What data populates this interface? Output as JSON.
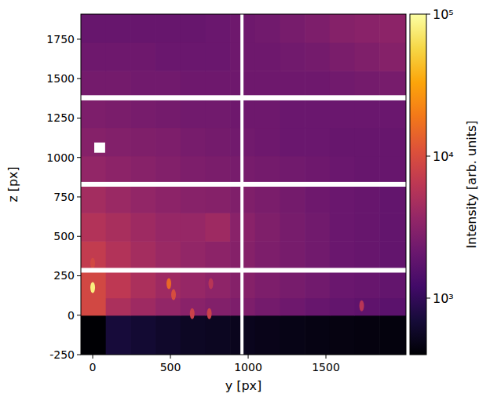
{
  "chart_data": {
    "type": "heatmap",
    "x_label": "y [px]",
    "y_label": "z [px]",
    "xlim": [
      -76,
      2015
    ],
    "ylim": [
      -250,
      1909
    ],
    "xticks": [
      0,
      500,
      1000,
      1500
    ],
    "yticks": [
      -250,
      0,
      250,
      500,
      750,
      1000,
      1250,
      1500,
      1750
    ],
    "x_edges": [
      -76,
      84,
      244,
      404,
      564,
      724,
      884,
      1044,
      1204,
      1364,
      1524,
      1684,
      1844,
      2015
    ],
    "y_edges": [
      -250,
      0,
      110,
      290,
      470,
      650,
      830,
      1010,
      1190,
      1370,
      1550,
      1730,
      1909
    ],
    "values": [
      [
        400,
        700,
        650,
        600,
        560,
        540,
        520,
        500,
        480,
        470,
        460,
        450,
        440
      ],
      [
        9000,
        5000,
        4200,
        3600,
        3200,
        2900,
        2700,
        2400,
        2200,
        2000,
        1900,
        1800,
        1700
      ],
      [
        9000,
        6500,
        5000,
        4200,
        3800,
        3400,
        3000,
        2700,
        2500,
        2300,
        2100,
        2000,
        1900
      ],
      [
        7000,
        5500,
        4600,
        4000,
        3600,
        3300,
        3000,
        2700,
        2500,
        2300,
        2100,
        2000,
        1900
      ],
      [
        5500,
        4800,
        4200,
        3800,
        3800,
        4200,
        3200,
        2800,
        2500,
        2300,
        2100,
        2000,
        1900
      ],
      [
        4500,
        4000,
        3600,
        3300,
        3100,
        3000,
        2800,
        2600,
        2400,
        2200,
        2100,
        2000,
        1900
      ],
      [
        3600,
        3300,
        3100,
        2900,
        2700,
        2600,
        2500,
        2400,
        2300,
        2200,
        2100,
        2000,
        2000
      ],
      [
        3000,
        2900,
        2800,
        2700,
        2500,
        2400,
        2300,
        2200,
        2100,
        2100,
        2000,
        2000,
        2000
      ],
      [
        2700,
        2600,
        2500,
        2400,
        2300,
        2300,
        2200,
        2200,
        2100,
        2100,
        2100,
        2100,
        2100
      ],
      [
        2400,
        2400,
        2300,
        2300,
        2200,
        2200,
        2200,
        2200,
        2200,
        2200,
        2300,
        2400,
        2500
      ],
      [
        2200,
        2200,
        2200,
        2100,
        2100,
        2100,
        2200,
        2200,
        2300,
        2400,
        2600,
        2800,
        3000
      ],
      [
        2000,
        2000,
        2000,
        2000,
        2000,
        2100,
        2200,
        2300,
        2500,
        2700,
        3000,
        3200,
        3300
      ]
    ],
    "peaks": [
      {
        "x": 0,
        "y": 175,
        "value": 80000
      },
      {
        "x": 0,
        "y": 330,
        "value": 9000
      },
      {
        "x": 490,
        "y": 200,
        "value": 15000
      },
      {
        "x": 520,
        "y": 130,
        "value": 10000
      },
      {
        "x": 640,
        "y": 10,
        "value": 8000
      },
      {
        "x": 750,
        "y": 10,
        "value": 8000
      },
      {
        "x": 760,
        "y": 200,
        "value": 6000
      },
      {
        "x": 1730,
        "y": 60,
        "value": 6000
      }
    ],
    "masked_regions": [
      {
        "x": [
          -76,
          2015
        ],
        "y": [
          1362,
          1395
        ]
      },
      {
        "x": [
          -76,
          2015
        ],
        "y": [
          815,
          845
        ]
      },
      {
        "x": [
          -76,
          2015
        ],
        "y": [
          270,
          300
        ]
      },
      {
        "x": [
          950,
          970
        ],
        "y": [
          -250,
          1909
        ]
      },
      {
        "x": [
          10,
          80
        ],
        "y": [
          1030,
          1095
        ]
      }
    ],
    "colorbar": {
      "label": "Intensity [arb. units]",
      "range": [
        400,
        100000
      ],
      "log": true,
      "ticks": [
        {
          "value": 1000,
          "label": "10³"
        },
        {
          "value": 10000,
          "label": "10⁴"
        },
        {
          "value": 100000,
          "label": "10⁵"
        }
      ]
    }
  }
}
